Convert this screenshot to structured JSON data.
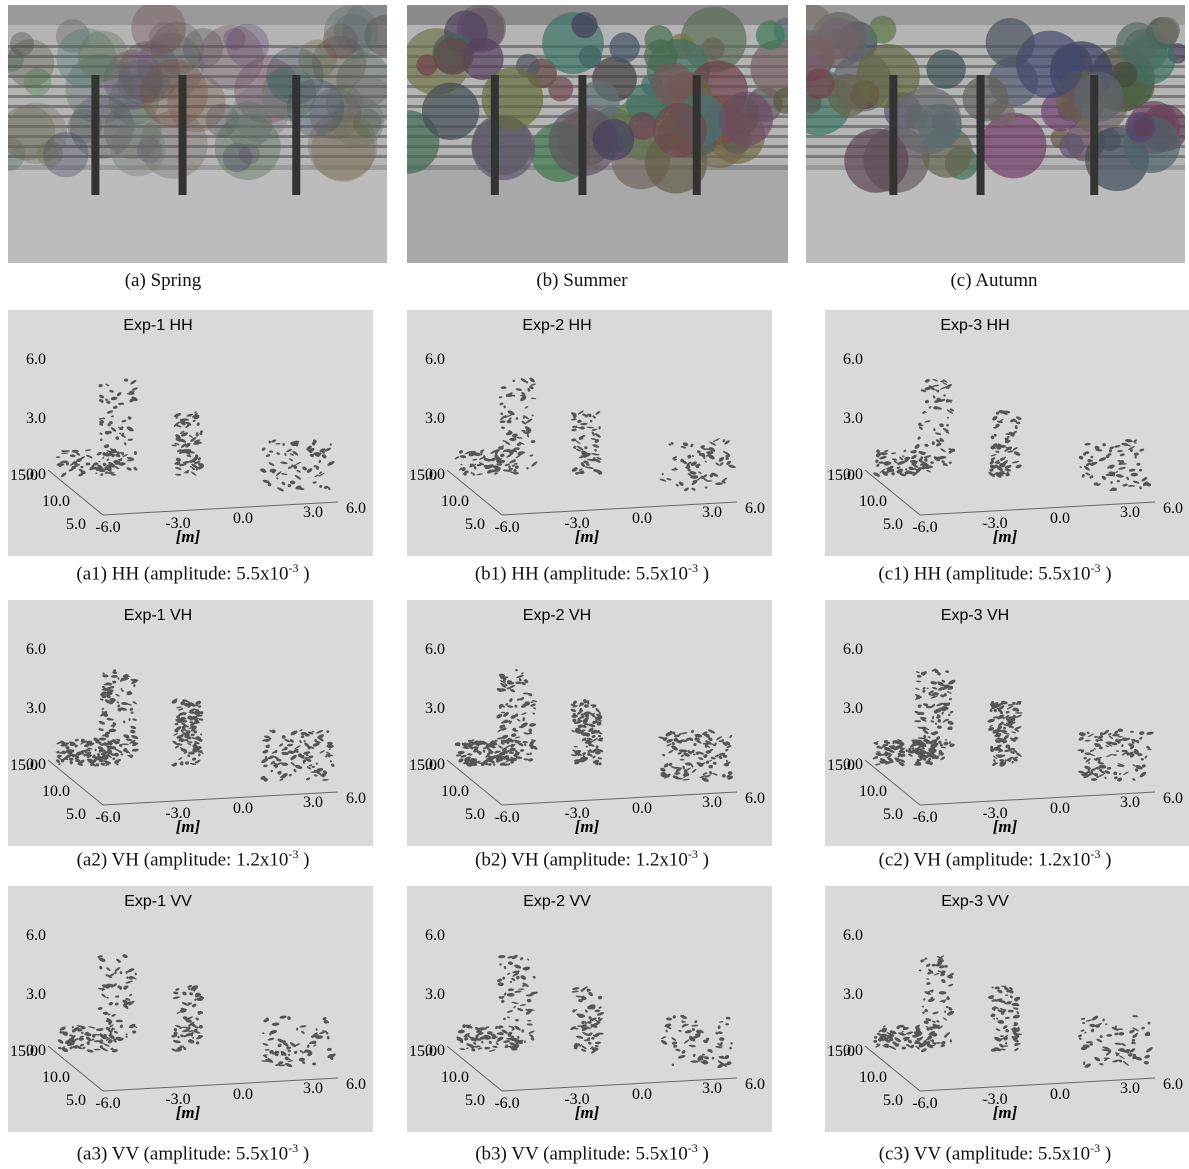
{
  "photos": [
    {
      "caption": "(a) Spring"
    },
    {
      "caption": "(b) Summer"
    },
    {
      "caption": "(c) Autumn"
    }
  ],
  "axis_labels": {
    "z": [
      "6.0",
      "3.0",
      "0.0"
    ],
    "depth": [
      "15.0",
      "10.0",
      "5.0"
    ],
    "x": [
      "-6.0",
      "-3.0",
      "0.0",
      "3.0",
      "6.0"
    ],
    "unit": "[m]"
  },
  "panels": [
    [
      {
        "title": "Exp-1 HH",
        "caption": {
          "text": "(a1) HH (amplitude: 5.5x10",
          "exponent": "-3",
          "close": " )"
        }
      },
      {
        "title": "Exp-2 HH",
        "caption": {
          "text": "(b1) HH (amplitude: 5.5x10",
          "exponent": "-3",
          "close": " )"
        }
      },
      {
        "title": "Exp-3 HH",
        "caption": {
          "text": "(c1) HH (amplitude: 5.5x10",
          "exponent": "-3",
          "close": " )"
        }
      }
    ],
    [
      {
        "title": "Exp-1 VH",
        "caption": {
          "text": "(a2) VH (amplitude: 1.2x10",
          "exponent": "-3",
          "close": " )"
        }
      },
      {
        "title": "Exp-2 VH",
        "caption": {
          "text": "(b2) VH (amplitude: 1.2x10",
          "exponent": "-3",
          "close": " )"
        }
      },
      {
        "title": "Exp-3 VH",
        "caption": {
          "text": "(c2) VH (amplitude: 1.2x10",
          "exponent": "-3",
          "close": " )"
        }
      }
    ],
    [
      {
        "title": "Exp-1 VV",
        "caption": {
          "text": "(a3) VV (amplitude: 5.5x10",
          "exponent": "-3",
          "close": " )"
        }
      },
      {
        "title": "Exp-2 VV",
        "caption": {
          "text": "(b3) VV (amplitude: 5.5x10",
          "exponent": "-3",
          "close": " )"
        }
      },
      {
        "title": "Exp-3 VV",
        "caption": {
          "text": "(c3) VV (amplitude: 5.5x10",
          "exponent": "-3",
          "close": " )"
        }
      }
    ]
  ]
}
